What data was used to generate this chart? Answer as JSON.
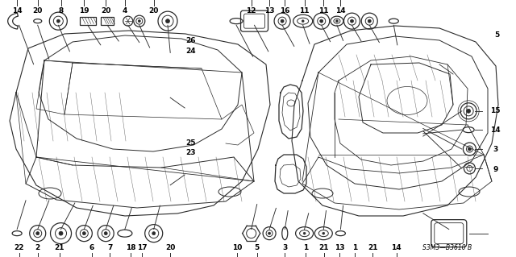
{
  "bg_color": "#f0f0f0",
  "line_color": "#2a2a2a",
  "diagram_code": "S3M3—B3610 B",
  "fig_w": 6.4,
  "fig_h": 3.19,
  "dpi": 100,
  "top_labels": [
    {
      "num": "22",
      "xf": 0.037,
      "yf": 0.965
    },
    {
      "num": "2",
      "xf": 0.073,
      "yf": 0.965
    },
    {
      "num": "21",
      "xf": 0.115,
      "yf": 0.965
    },
    {
      "num": "6",
      "xf": 0.178,
      "yf": 0.965
    },
    {
      "num": "7",
      "xf": 0.213,
      "yf": 0.965
    },
    {
      "num": "18",
      "xf": 0.253,
      "yf": 0.965
    },
    {
      "num": "17",
      "xf": 0.275,
      "yf": 0.965
    },
    {
      "num": "20",
      "xf": 0.33,
      "yf": 0.965
    },
    {
      "num": "10",
      "xf": 0.46,
      "yf": 0.965
    },
    {
      "num": "5",
      "xf": 0.498,
      "yf": 0.965
    },
    {
      "num": "3",
      "xf": 0.552,
      "yf": 0.965
    },
    {
      "num": "1",
      "xf": 0.592,
      "yf": 0.965
    },
    {
      "num": "21",
      "xf": 0.628,
      "yf": 0.965
    },
    {
      "num": "13",
      "xf": 0.658,
      "yf": 0.965
    },
    {
      "num": "1",
      "xf": 0.688,
      "yf": 0.965
    },
    {
      "num": "21",
      "xf": 0.722,
      "yf": 0.965
    },
    {
      "num": "14",
      "xf": 0.768,
      "yf": 0.965
    }
  ],
  "bottom_labels": [
    {
      "num": "14",
      "xf": 0.033,
      "yf": 0.042
    },
    {
      "num": "20",
      "xf": 0.073,
      "yf": 0.042
    },
    {
      "num": "8",
      "xf": 0.118,
      "yf": 0.042
    },
    {
      "num": "19",
      "xf": 0.163,
      "yf": 0.042
    },
    {
      "num": "20",
      "xf": 0.205,
      "yf": 0.042
    },
    {
      "num": "4",
      "xf": 0.242,
      "yf": 0.042
    },
    {
      "num": "20",
      "xf": 0.298,
      "yf": 0.042
    },
    {
      "num": "12",
      "xf": 0.487,
      "yf": 0.042
    },
    {
      "num": "13",
      "xf": 0.522,
      "yf": 0.042
    },
    {
      "num": "16",
      "xf": 0.552,
      "yf": 0.042
    },
    {
      "num": "11",
      "xf": 0.59,
      "yf": 0.042
    },
    {
      "num": "11",
      "xf": 0.627,
      "yf": 0.042
    },
    {
      "num": "14",
      "xf": 0.66,
      "yf": 0.042
    }
  ],
  "mid_labels": [
    {
      "num": "23",
      "xf": 0.37,
      "yf": 0.595
    },
    {
      "num": "25",
      "xf": 0.37,
      "yf": 0.555
    },
    {
      "num": "24",
      "xf": 0.37,
      "yf": 0.198
    },
    {
      "num": "26",
      "xf": 0.37,
      "yf": 0.158
    }
  ],
  "right_side_labels": [
    {
      "num": "9",
      "xf": 0.96,
      "yf": 0.66
    },
    {
      "num": "3",
      "xf": 0.96,
      "yf": 0.58
    },
    {
      "num": "14",
      "xf": 0.96,
      "yf": 0.505
    },
    {
      "num": "15",
      "xf": 0.96,
      "yf": 0.432
    }
  ],
  "right_bottom_label": {
    "num": "5",
    "xf": 0.963,
    "yf": 0.135
  },
  "font_size": 6.5,
  "small_font": 5.5
}
